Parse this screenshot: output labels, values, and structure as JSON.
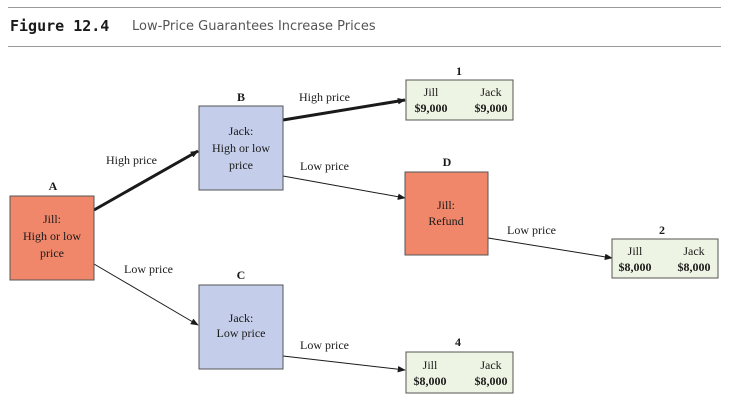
{
  "header": {
    "figure_label": "Figure 12.4",
    "figure_title": "Low-Price Guarantees Increase Prices"
  },
  "colors": {
    "jill_node": "#f0876a",
    "jack_node": "#c4cdea",
    "payoff_box": "#eef4e4",
    "border": "#555555"
  },
  "nodes": {
    "A": {
      "letter": "A",
      "lines": [
        "Jill:",
        "High or low",
        "price"
      ]
    },
    "B": {
      "letter": "B",
      "lines": [
        "Jack:",
        "High or low",
        "price"
      ]
    },
    "C": {
      "letter": "C",
      "lines": [
        "Jack:",
        "Low price"
      ]
    },
    "D": {
      "letter": "D",
      "lines": [
        "Jill:",
        "Refund"
      ]
    }
  },
  "edges": {
    "A_B": "High price",
    "A_C": "Low price",
    "B_1": "High price",
    "B_D": "Low price",
    "D_2": "Low price",
    "C_4": "Low price"
  },
  "payoffs": {
    "p1": {
      "number": "1",
      "jill_label": "Jill",
      "jack_label": "Jack",
      "jill_value": "$9,000",
      "jack_value": "$9,000"
    },
    "p2": {
      "number": "2",
      "jill_label": "Jill",
      "jack_label": "Jack",
      "jill_value": "$8,000",
      "jack_value": "$8,000"
    },
    "p4": {
      "number": "4",
      "jill_label": "Jill",
      "jack_label": "Jack",
      "jill_value": "$8,000",
      "jack_value": "$8,000"
    }
  }
}
